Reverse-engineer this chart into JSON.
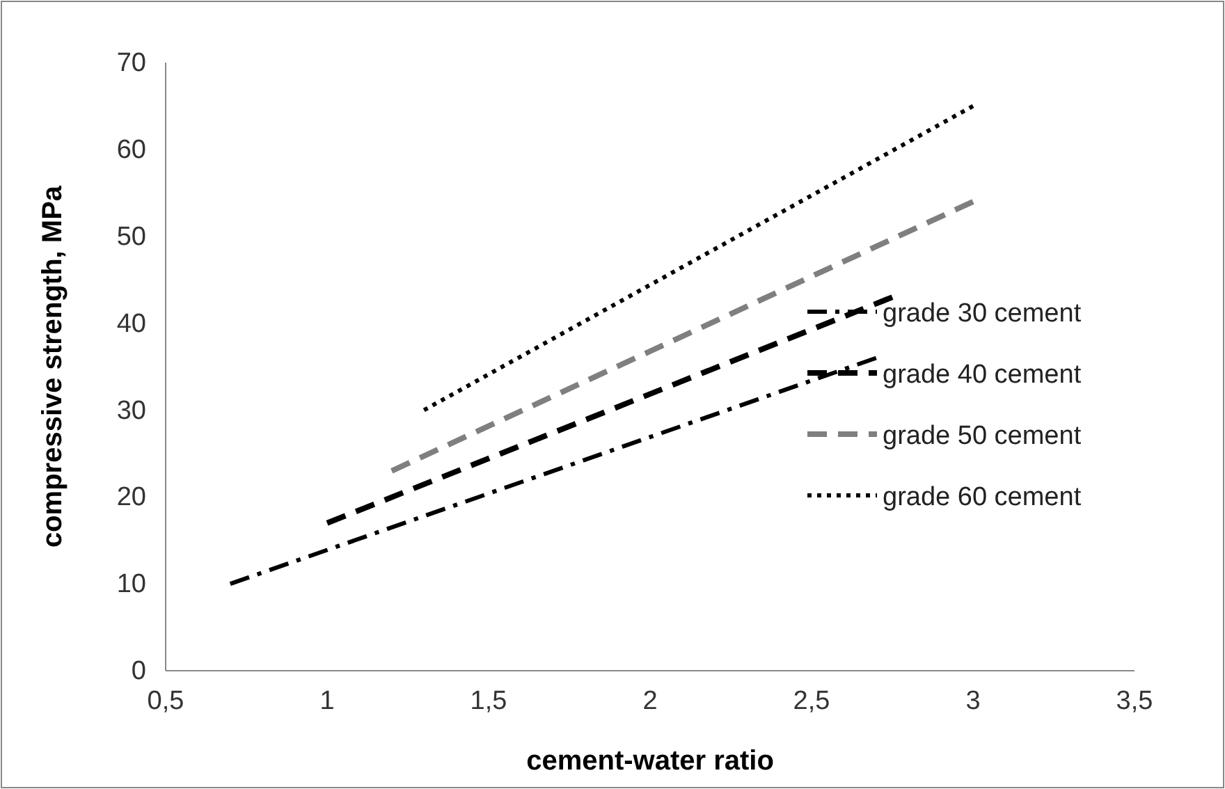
{
  "chart_data": {
    "type": "line",
    "xlabel": "cement-water ratio",
    "ylabel": "compressive strength, MPa",
    "xlim": [
      0.5,
      3.5
    ],
    "xticks": [
      {
        "value": 0.5,
        "label": "0,5"
      },
      1,
      {
        "value": 1.5,
        "label": "1,5"
      },
      2,
      {
        "value": 2.5,
        "label": "2,5"
      },
      3,
      {
        "value": 3.5,
        "label": "3,5"
      }
    ],
    "ylim": [
      0,
      70
    ],
    "yticks": [
      0,
      10,
      20,
      30,
      40,
      50,
      60,
      70
    ],
    "grid": false,
    "legend": "right",
    "marker": "none",
    "series": [
      {
        "name": "grade 30 cement",
        "color": "#000000",
        "line_style": "dashdot",
        "x": [
          0.7,
          2.7
        ],
        "values": [
          10,
          36
        ]
      },
      {
        "name": "grade 40 cement",
        "color": "#000000",
        "line_style": "dashed",
        "x": [
          1,
          2.75
        ],
        "values": [
          17,
          43
        ]
      },
      {
        "name": "grade 50 cement",
        "color": "#7f7f7f",
        "line_style": "dashed",
        "x": [
          1.2,
          3
        ],
        "values": [
          23,
          54
        ]
      },
      {
        "name": "grade 60 cement",
        "color": "#000000",
        "line_style": "dotted",
        "x": [
          1.3,
          3
        ],
        "values": [
          30,
          65
        ]
      }
    ]
  }
}
